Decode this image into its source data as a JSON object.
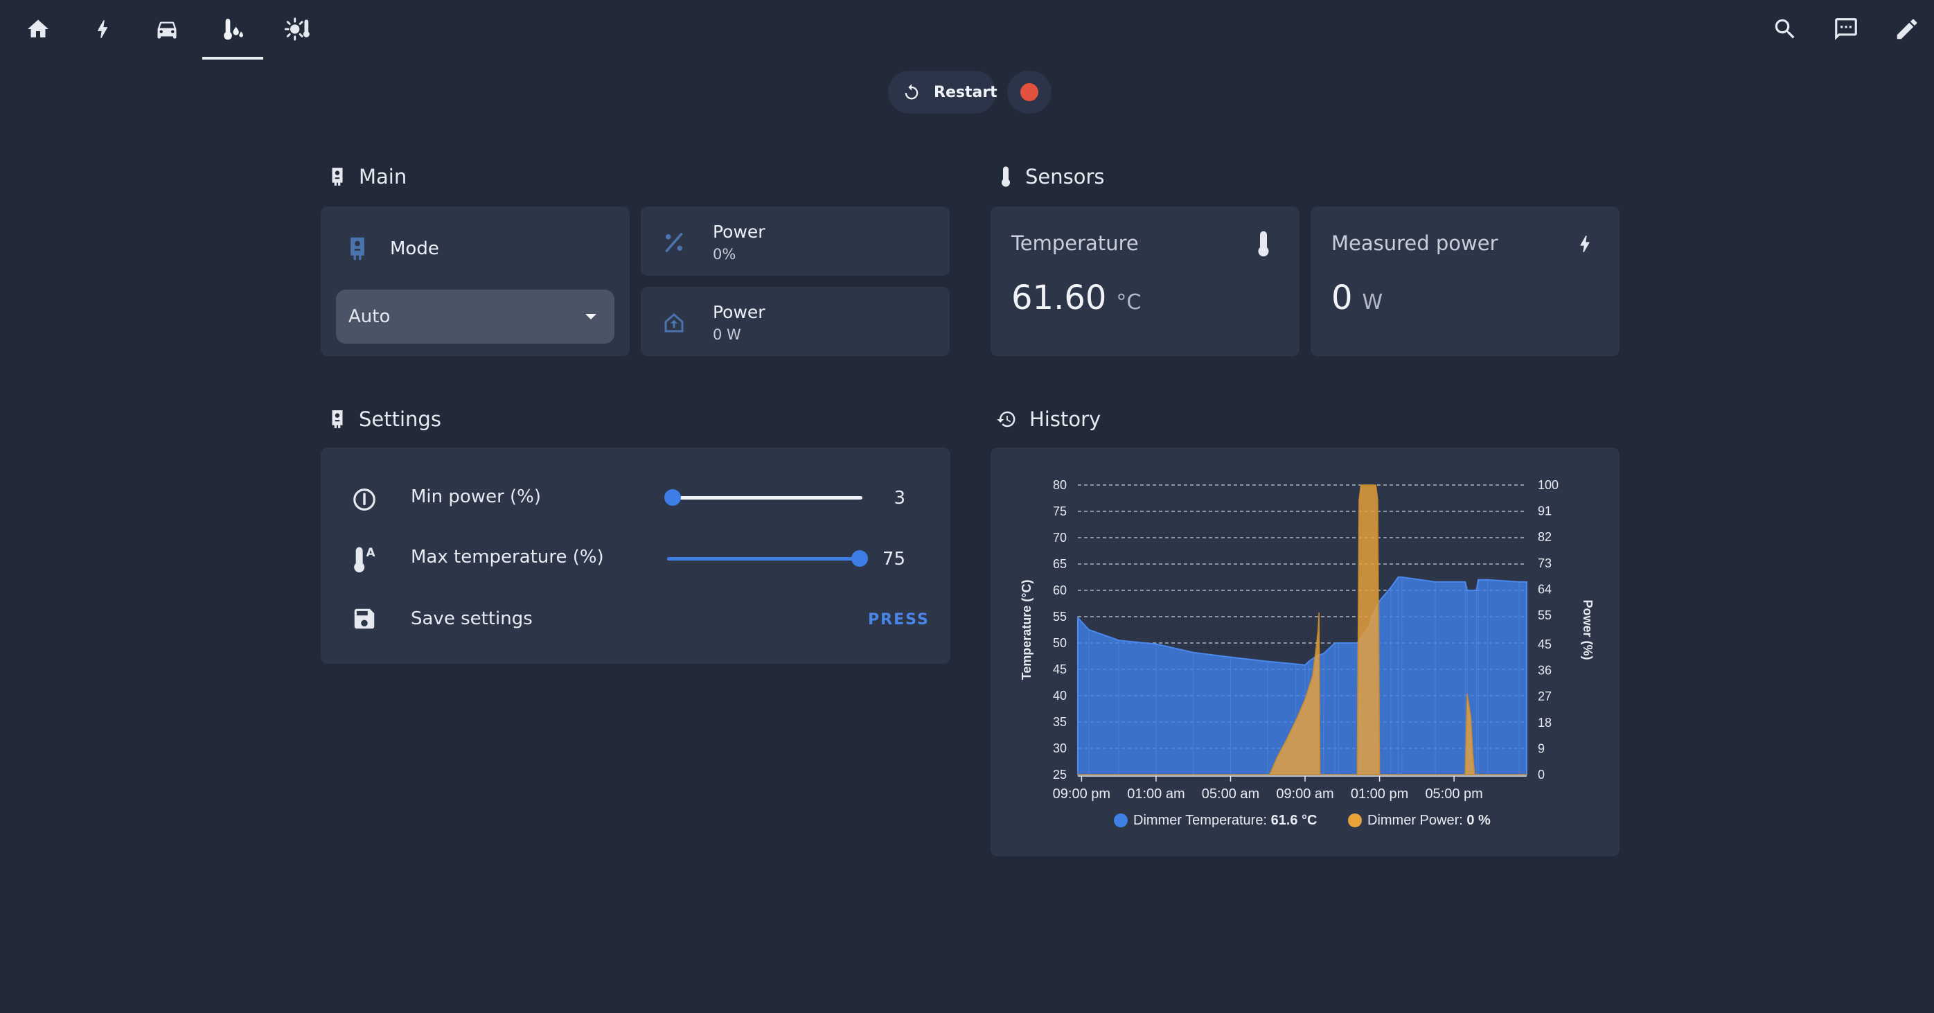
{
  "nav": {
    "tabs": [
      {
        "icon": "home-icon"
      },
      {
        "icon": "lightning-icon"
      },
      {
        "icon": "car-icon"
      },
      {
        "icon": "thermometer-water-icon",
        "active": true
      },
      {
        "icon": "sun-thermometer-icon"
      }
    ],
    "actions": [
      {
        "icon": "search-icon"
      },
      {
        "icon": "chat-icon"
      },
      {
        "icon": "pencil-icon"
      }
    ]
  },
  "controls": {
    "restart_label": "Restart",
    "record_color": "#e3513f"
  },
  "main": {
    "title": "Main",
    "mode": {
      "label": "Mode",
      "value": "Auto"
    },
    "power_percent": {
      "name": "Power",
      "value": "0%"
    },
    "power_watts": {
      "name": "Power",
      "value": "0 W"
    }
  },
  "sensors": {
    "title": "Sensors",
    "temperature": {
      "name": "Temperature",
      "value": "61.60",
      "unit": "°C"
    },
    "measured_power": {
      "name": "Measured power",
      "value": "0",
      "unit": "W"
    }
  },
  "settings": {
    "title": "Settings",
    "min_power": {
      "label": "Min power (%)",
      "value": 3,
      "min": 0,
      "max": 100
    },
    "max_temperature": {
      "label": "Max temperature (%)",
      "value": 75,
      "min": 0,
      "max": 76
    },
    "save": {
      "label": "Save settings",
      "button": "PRESS"
    }
  },
  "history": {
    "title": "History"
  },
  "chart_data": {
    "type": "area",
    "xlabel": "",
    "ylabel": "Temperature (°C)",
    "y2label": "Power (%)",
    "x_tick_labels": [
      "09:00 pm",
      "01:00 am",
      "05:00 am",
      "09:00 am",
      "01:00 pm",
      "05:00 pm"
    ],
    "x_unit": "hours",
    "xlim": [
      20.8,
      44.9
    ],
    "y_ticks": [
      25,
      30,
      35,
      40,
      45,
      50,
      55,
      60,
      65,
      70,
      75,
      80
    ],
    "y2_ticks": [
      0,
      9,
      18,
      27,
      36,
      45,
      55,
      64,
      73,
      82,
      91,
      100
    ],
    "ylim": [
      25,
      80
    ],
    "y2lim": [
      0,
      100
    ],
    "grid": true,
    "legend_position": "bottom",
    "legend": [
      {
        "name": "Dimmer Temperature",
        "value": "61.6 °C",
        "color": "#3f7fe6"
      },
      {
        "name": "Dimmer Power",
        "value": "0 %",
        "color": "#e8a23a"
      }
    ],
    "series": [
      {
        "name": "Dimmer Temperature",
        "axis": "left",
        "x": [
          20.8,
          21.4,
          23.0,
          25.0,
          27.0,
          29.0,
          31.0,
          32.5,
          33.0,
          33.2,
          33.6,
          34.0,
          34.6,
          34.8,
          35.8,
          36.0,
          36.4,
          36.6,
          37.0,
          37.6,
          38.0,
          38.2,
          40.0,
          41.6,
          41.7,
          42.2,
          42.3,
          42.8,
          44.5,
          44.9
        ],
        "y": [
          54.8,
          52.5,
          50.5,
          49.8,
          48.2,
          47.3,
          46.5,
          46.0,
          45.8,
          46.5,
          47.5,
          48.0,
          50.0,
          50.0,
          50.0,
          51.0,
          53.0,
          55.0,
          58.0,
          60.5,
          62.5,
          62.5,
          61.6,
          61.6,
          60.0,
          60.0,
          62.0,
          62.0,
          61.6,
          61.6
        ]
      },
      {
        "name": "Dimmer Power",
        "axis": "right",
        "x": [
          20.8,
          31.1,
          31.5,
          32.0,
          32.6,
          33.0,
          33.4,
          33.6,
          33.7,
          33.75,
          33.8,
          35.8,
          35.9,
          36.0,
          36.2,
          36.4,
          36.6,
          36.8,
          36.9,
          37.0,
          41.6,
          41.7,
          41.9,
          42.0,
          42.1,
          44.9
        ],
        "y": [
          0,
          0,
          6,
          12,
          20,
          26,
          34,
          44,
          50,
          56,
          0,
          0,
          95,
          100,
          100,
          100,
          100,
          100,
          95,
          0,
          0,
          28,
          20,
          8,
          0,
          0
        ]
      }
    ]
  }
}
